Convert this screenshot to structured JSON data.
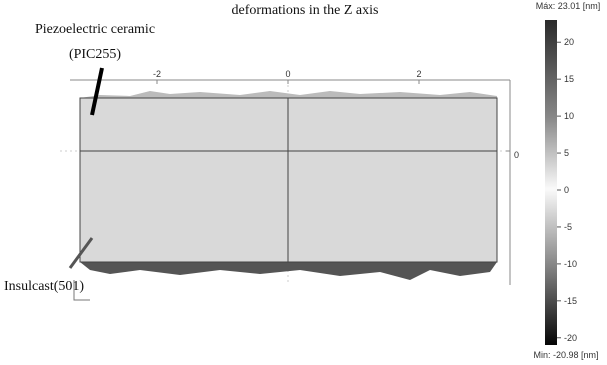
{
  "title": "deformations in the Z axis",
  "labels": {
    "ceramic_line1": "Piezoelectric ceramic",
    "ceramic_line2": "(PIC255)",
    "insulcast": "Insulcast(501)"
  },
  "x_axis": {
    "ticks": [
      -2,
      0,
      2
    ]
  },
  "y_axis": {
    "ticks": [
      0
    ]
  },
  "colorbar": {
    "max": {
      "value": 23.01,
      "label": "Máx: 23.01 [nm]"
    },
    "min": {
      "value": -20.98,
      "label": "Min: -20.98 [nm]"
    },
    "ticks": [
      20,
      15,
      10,
      5,
      0,
      -5,
      -10,
      -15,
      -20
    ]
  }
}
